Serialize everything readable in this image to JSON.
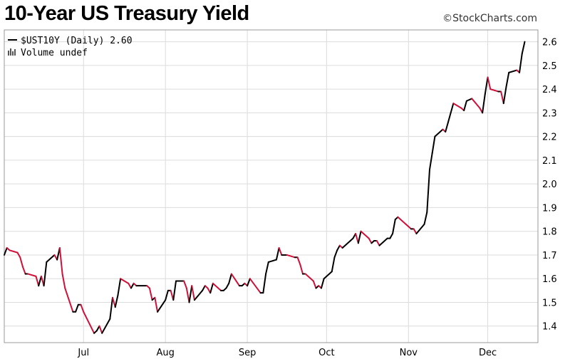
{
  "header": {
    "title": "10-Year US Treasury Yield",
    "credit": "StockCharts.com",
    "credit_symbol": "©"
  },
  "legend": {
    "series_label": "$UST10Y (Daily) 2.60",
    "volume_label": "Volume undef"
  },
  "colors": {
    "line_up": "#000000",
    "line_down": "#d0103a",
    "grid": "#dcdcdc"
  },
  "chart_data": {
    "type": "line",
    "title": "10-Year US Treasury Yield",
    "xlabel": "",
    "ylabel": "",
    "ylim": [
      1.33,
      2.65
    ],
    "y_ticks": [
      1.4,
      1.5,
      1.6,
      1.7,
      1.8,
      1.9,
      2.0,
      2.1,
      2.2,
      2.3,
      2.4,
      2.5,
      2.6
    ],
    "x_ticks": [
      {
        "label": "Jul",
        "date": "2016-07-01"
      },
      {
        "label": "Aug",
        "date": "2016-08-01"
      },
      {
        "label": "Sep",
        "date": "2016-09-01"
      },
      {
        "label": "Oct",
        "date": "2016-10-01"
      },
      {
        "label": "Nov",
        "date": "2016-11-01"
      },
      {
        "label": "Dec",
        "date": "2016-12-01"
      }
    ],
    "x_range": [
      "2016-06-01",
      "2016-12-20"
    ],
    "grid": true,
    "series": [
      {
        "name": "$UST10Y (Daily)",
        "last_value": 2.6,
        "points": [
          [
            "2016-06-01",
            1.7
          ],
          [
            "2016-06-02",
            1.73
          ],
          [
            "2016-06-03",
            1.72
          ],
          [
            "2016-06-06",
            1.71
          ],
          [
            "2016-06-07",
            1.69
          ],
          [
            "2016-06-08",
            1.65
          ],
          [
            "2016-06-09",
            1.62
          ],
          [
            "2016-06-10",
            1.62
          ],
          [
            "2016-06-13",
            1.61
          ],
          [
            "2016-06-14",
            1.57
          ],
          [
            "2016-06-15",
            1.61
          ],
          [
            "2016-06-16",
            1.57
          ],
          [
            "2016-06-17",
            1.67
          ],
          [
            "2016-06-20",
            1.7
          ],
          [
            "2016-06-21",
            1.68
          ],
          [
            "2016-06-22",
            1.73
          ],
          [
            "2016-06-23",
            1.62
          ],
          [
            "2016-06-24",
            1.56
          ],
          [
            "2016-06-27",
            1.46
          ],
          [
            "2016-06-28",
            1.46
          ],
          [
            "2016-06-29",
            1.49
          ],
          [
            "2016-06-30",
            1.49
          ],
          [
            "2016-07-01",
            1.46
          ],
          [
            "2016-07-05",
            1.37
          ],
          [
            "2016-07-06",
            1.38
          ],
          [
            "2016-07-07",
            1.4
          ],
          [
            "2016-07-08",
            1.37
          ],
          [
            "2016-07-11",
            1.43
          ],
          [
            "2016-07-12",
            1.52
          ],
          [
            "2016-07-13",
            1.48
          ],
          [
            "2016-07-14",
            1.53
          ],
          [
            "2016-07-15",
            1.6
          ],
          [
            "2016-07-18",
            1.58
          ],
          [
            "2016-07-19",
            1.56
          ],
          [
            "2016-07-20",
            1.58
          ],
          [
            "2016-07-21",
            1.57
          ],
          [
            "2016-07-22",
            1.57
          ],
          [
            "2016-07-25",
            1.57
          ],
          [
            "2016-07-26",
            1.56
          ],
          [
            "2016-07-27",
            1.51
          ],
          [
            "2016-07-28",
            1.52
          ],
          [
            "2016-07-29",
            1.46
          ],
          [
            "2016-08-01",
            1.51
          ],
          [
            "2016-08-02",
            1.55
          ],
          [
            "2016-08-03",
            1.55
          ],
          [
            "2016-08-04",
            1.51
          ],
          [
            "2016-08-05",
            1.59
          ],
          [
            "2016-08-08",
            1.59
          ],
          [
            "2016-08-09",
            1.56
          ],
          [
            "2016-08-10",
            1.5
          ],
          [
            "2016-08-11",
            1.57
          ],
          [
            "2016-08-12",
            1.51
          ],
          [
            "2016-08-15",
            1.55
          ],
          [
            "2016-08-16",
            1.57
          ],
          [
            "2016-08-17",
            1.56
          ],
          [
            "2016-08-18",
            1.54
          ],
          [
            "2016-08-19",
            1.58
          ],
          [
            "2016-08-22",
            1.55
          ],
          [
            "2016-08-23",
            1.55
          ],
          [
            "2016-08-24",
            1.56
          ],
          [
            "2016-08-25",
            1.58
          ],
          [
            "2016-08-26",
            1.62
          ],
          [
            "2016-08-29",
            1.57
          ],
          [
            "2016-08-30",
            1.57
          ],
          [
            "2016-08-31",
            1.58
          ],
          [
            "2016-09-01",
            1.57
          ],
          [
            "2016-09-02",
            1.6
          ],
          [
            "2016-09-06",
            1.54
          ],
          [
            "2016-09-07",
            1.54
          ],
          [
            "2016-09-08",
            1.62
          ],
          [
            "2016-09-09",
            1.67
          ],
          [
            "2016-09-12",
            1.68
          ],
          [
            "2016-09-13",
            1.73
          ],
          [
            "2016-09-14",
            1.7
          ],
          [
            "2016-09-15",
            1.7
          ],
          [
            "2016-09-16",
            1.7
          ],
          [
            "2016-09-19",
            1.69
          ],
          [
            "2016-09-20",
            1.69
          ],
          [
            "2016-09-21",
            1.66
          ],
          [
            "2016-09-22",
            1.62
          ],
          [
            "2016-09-23",
            1.62
          ],
          [
            "2016-09-26",
            1.59
          ],
          [
            "2016-09-27",
            1.56
          ],
          [
            "2016-09-28",
            1.57
          ],
          [
            "2016-09-29",
            1.56
          ],
          [
            "2016-09-30",
            1.6
          ],
          [
            "2016-10-03",
            1.63
          ],
          [
            "2016-10-04",
            1.69
          ],
          [
            "2016-10-05",
            1.72
          ],
          [
            "2016-10-06",
            1.74
          ],
          [
            "2016-10-07",
            1.73
          ],
          [
            "2016-10-10",
            1.76
          ],
          [
            "2016-10-11",
            1.77
          ],
          [
            "2016-10-12",
            1.79
          ],
          [
            "2016-10-13",
            1.75
          ],
          [
            "2016-10-14",
            1.8
          ],
          [
            "2016-10-17",
            1.77
          ],
          [
            "2016-10-18",
            1.75
          ],
          [
            "2016-10-19",
            1.76
          ],
          [
            "2016-10-20",
            1.76
          ],
          [
            "2016-10-21",
            1.74
          ],
          [
            "2016-10-24",
            1.77
          ],
          [
            "2016-10-25",
            1.77
          ],
          [
            "2016-10-26",
            1.79
          ],
          [
            "2016-10-27",
            1.85
          ],
          [
            "2016-10-28",
            1.86
          ],
          [
            "2016-10-31",
            1.83
          ],
          [
            "2016-11-01",
            1.82
          ],
          [
            "2016-11-02",
            1.81
          ],
          [
            "2016-11-03",
            1.81
          ],
          [
            "2016-11-04",
            1.79
          ],
          [
            "2016-11-07",
            1.83
          ],
          [
            "2016-11-08",
            1.88
          ],
          [
            "2016-11-09",
            2.06
          ],
          [
            "2016-11-10",
            2.13
          ],
          [
            "2016-11-11",
            2.2
          ],
          [
            "2016-11-14",
            2.23
          ],
          [
            "2016-11-15",
            2.22
          ],
          [
            "2016-11-16",
            2.26
          ],
          [
            "2016-11-17",
            2.3
          ],
          [
            "2016-11-18",
            2.34
          ],
          [
            "2016-11-21",
            2.32
          ],
          [
            "2016-11-22",
            2.31
          ],
          [
            "2016-11-23",
            2.35
          ],
          [
            "2016-11-25",
            2.36
          ],
          [
            "2016-11-28",
            2.32
          ],
          [
            "2016-11-29",
            2.3
          ],
          [
            "2016-11-30",
            2.38
          ],
          [
            "2016-12-01",
            2.45
          ],
          [
            "2016-12-02",
            2.4
          ],
          [
            "2016-12-05",
            2.39
          ],
          [
            "2016-12-06",
            2.39
          ],
          [
            "2016-12-07",
            2.34
          ],
          [
            "2016-12-08",
            2.41
          ],
          [
            "2016-12-09",
            2.47
          ],
          [
            "2016-12-12",
            2.48
          ],
          [
            "2016-12-13",
            2.47
          ],
          [
            "2016-12-14",
            2.55
          ],
          [
            "2016-12-15",
            2.6
          ]
        ]
      }
    ]
  }
}
